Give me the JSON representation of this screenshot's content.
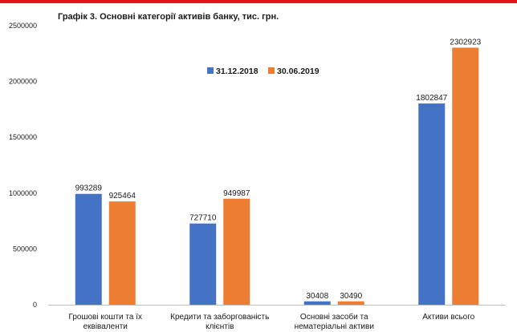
{
  "chart_data": {
    "type": "bar",
    "title": "Графік 3. Основні категорії активів банку, тис. грн.",
    "categories": [
      [
        "Грошові кошти та їх",
        "еквіваленти"
      ],
      [
        "Кредити та заборгованість",
        "клієнтів"
      ],
      [
        "Основні засоби та",
        "нематеріальні активи"
      ],
      [
        "Активи всього"
      ]
    ],
    "series": [
      {
        "name": "31.12.2018",
        "color": "#4472c4",
        "values": [
          993289,
          727710,
          30408,
          1802847
        ]
      },
      {
        "name": "30.06.2019",
        "color": "#ed7d31",
        "values": [
          925464,
          949987,
          30490,
          2302923
        ]
      }
    ],
    "ylim": [
      0,
      2500000
    ],
    "yticks": [
      0,
      500000,
      1000000,
      1500000,
      2000000,
      2500000
    ],
    "ytick_labels": [
      "0",
      "500000",
      "1000000",
      "1500000",
      "2000000",
      "2500000"
    ],
    "legend_position": "top-center",
    "grid": false
  }
}
